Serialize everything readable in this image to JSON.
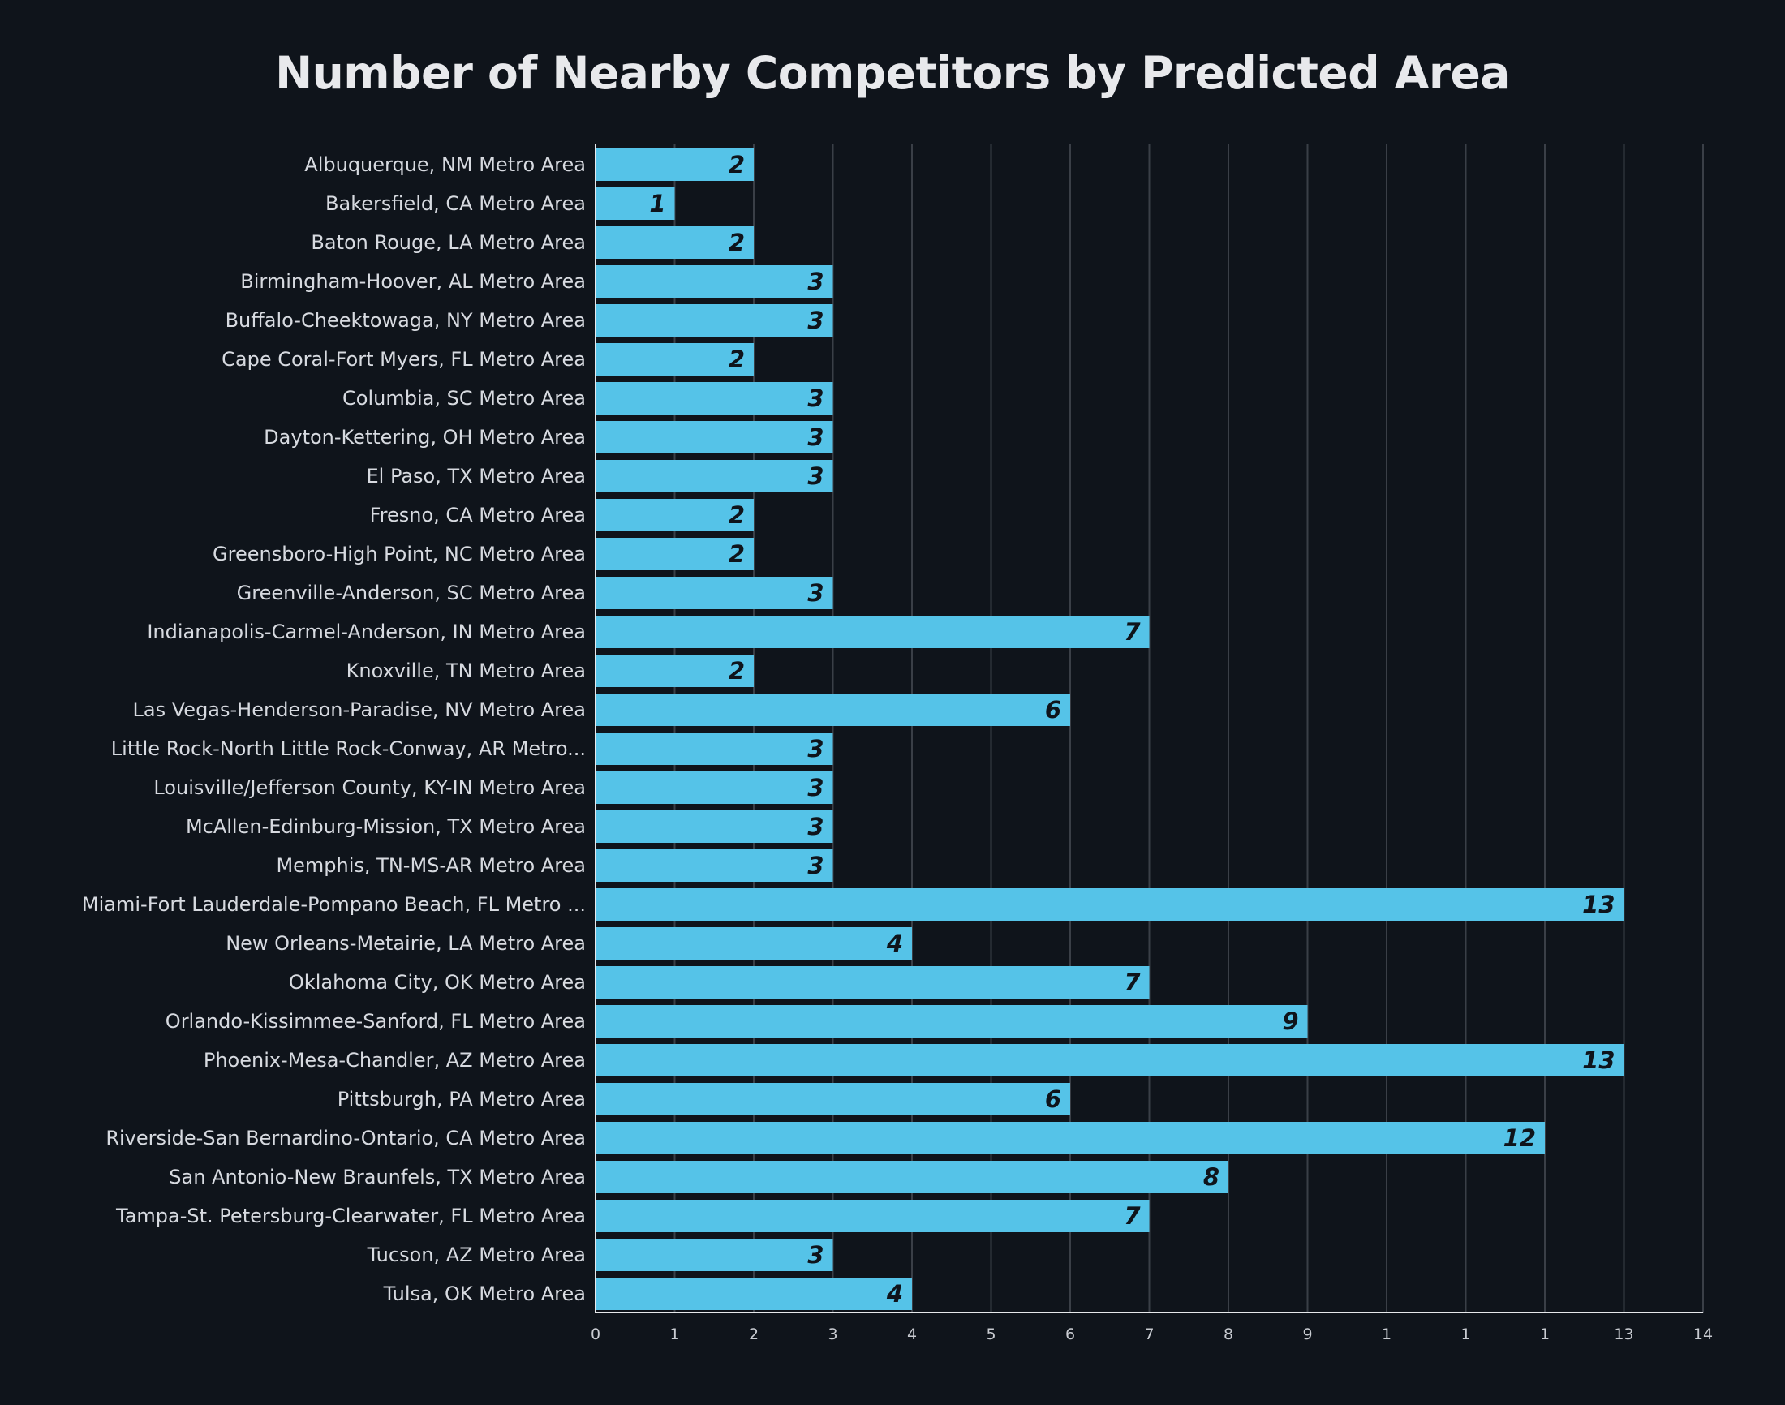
{
  "chart_data": {
    "type": "bar",
    "orientation": "horizontal",
    "title": "Number of Nearby Competitors by Predicted Area",
    "xlabel": "",
    "ylabel": "",
    "xlim": [
      0,
      14
    ],
    "grid": true,
    "x_tick_labels": [
      "0",
      "1",
      "2",
      "3",
      "4",
      "5",
      "6",
      "7",
      "8",
      "9",
      "1",
      "1",
      "1",
      "13",
      "14"
    ],
    "categories": [
      "Albuquerque, NM Metro Area",
      "Bakersfield, CA Metro Area",
      "Baton Rouge, LA Metro Area",
      "Birmingham-Hoover, AL Metro Area",
      "Buffalo-Cheektowaga, NY Metro Area",
      "Cape Coral-Fort Myers, FL Metro Area",
      "Columbia, SC Metro Area",
      "Dayton-Kettering, OH Metro Area",
      "El Paso, TX Metro Area",
      "Fresno, CA Metro Area",
      "Greensboro-High Point, NC Metro Area",
      "Greenville-Anderson, SC Metro Area",
      "Indianapolis-Carmel-Anderson, IN Metro Area",
      "Knoxville, TN Metro Area",
      "Las Vegas-Henderson-Paradise, NV Metro Area",
      "Little Rock-North Little Rock-Conway, AR Metro...",
      "Louisville/Jefferson County, KY-IN Metro Area",
      "McAllen-Edinburg-Mission, TX Metro Area",
      "Memphis, TN-MS-AR Metro Area",
      "Miami-Fort Lauderdale-Pompano Beach, FL Metro ...",
      "New Orleans-Metairie, LA Metro Area",
      "Oklahoma City, OK Metro Area",
      "Orlando-Kissimmee-Sanford, FL Metro Area",
      "Phoenix-Mesa-Chandler, AZ Metro Area",
      "Pittsburgh, PA Metro Area",
      "Riverside-San Bernardino-Ontario, CA Metro Area",
      "San Antonio-New Braunfels, TX Metro Area",
      "Tampa-St. Petersburg-Clearwater, FL Metro Area",
      "Tucson, AZ Metro Area",
      "Tulsa, OK Metro Area"
    ],
    "values": [
      2,
      1,
      2,
      3,
      3,
      2,
      3,
      3,
      3,
      2,
      2,
      3,
      7,
      2,
      6,
      3,
      3,
      3,
      3,
      13,
      4,
      7,
      9,
      13,
      6,
      12,
      8,
      7,
      3,
      4
    ],
    "bar_color": "#55c3e8",
    "background_color": "#0f141b"
  }
}
